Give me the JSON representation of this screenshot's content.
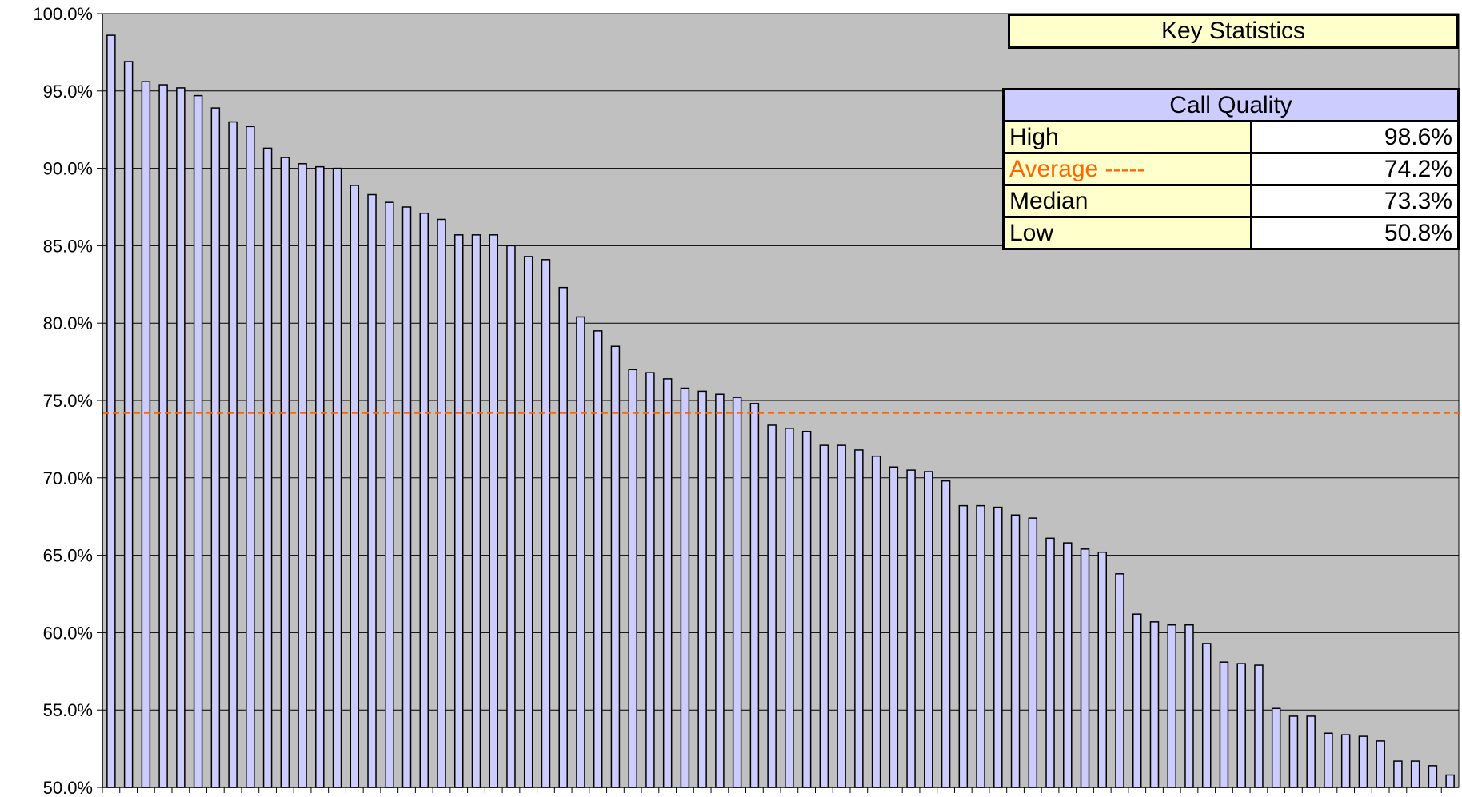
{
  "chart_data": {
    "type": "bar",
    "ylim": [
      50,
      100
    ],
    "y_ticks": [
      "100.0%",
      "95.0%",
      "90.0%",
      "85.0%",
      "80.0%",
      "75.0%",
      "70.0%",
      "65.0%",
      "60.0%",
      "55.0%",
      "50.0%"
    ],
    "y_tick_values": [
      100,
      95,
      90,
      85,
      80,
      75,
      70,
      65,
      60,
      55,
      50
    ],
    "grid": true,
    "average_line": 74.2,
    "values": [
      98.6,
      96.9,
      95.6,
      95.4,
      95.2,
      94.7,
      93.9,
      93.0,
      92.7,
      91.3,
      90.7,
      90.3,
      90.1,
      90.0,
      88.9,
      88.3,
      87.8,
      87.5,
      87.1,
      86.7,
      85.7,
      85.7,
      85.7,
      85.0,
      84.3,
      84.1,
      82.3,
      80.4,
      79.5,
      78.5,
      77.0,
      76.8,
      76.4,
      75.8,
      75.6,
      75.4,
      75.2,
      74.8,
      73.4,
      73.2,
      73.0,
      72.1,
      72.1,
      71.8,
      71.4,
      70.7,
      70.5,
      70.4,
      69.8,
      68.2,
      68.2,
      68.1,
      67.6,
      67.4,
      66.1,
      65.8,
      65.4,
      65.2,
      63.8,
      61.2,
      60.7,
      60.5,
      60.5,
      59.3,
      58.1,
      58.0,
      57.9,
      55.1,
      54.6,
      54.6,
      53.5,
      53.4,
      53.3,
      53.0,
      51.7,
      51.7,
      51.4,
      50.8
    ],
    "bar_color": "#ccccff",
    "bar_stroke": "#000000",
    "plot_bg": "#c0c0c0",
    "average_color": "#ff6600"
  },
  "key_statistics": {
    "title": "Key Statistics",
    "table_header": "Call Quality",
    "rows": [
      {
        "label": "High",
        "value": "98.6%"
      },
      {
        "label": "Average -----",
        "value": "74.2%"
      },
      {
        "label": "Median",
        "value": "73.3%"
      },
      {
        "label": "Low",
        "value": "50.8%"
      }
    ]
  }
}
